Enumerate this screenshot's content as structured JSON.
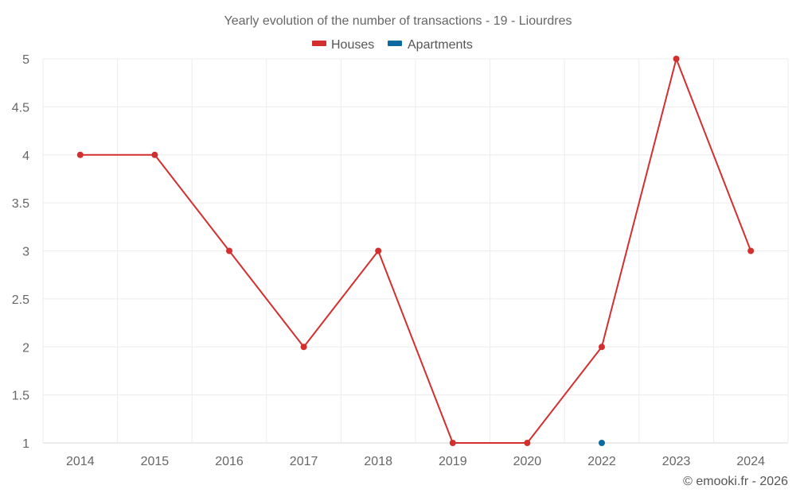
{
  "chart_data": {
    "type": "line",
    "title": "Yearly evolution of the number of transactions - 19 - Liourdres",
    "categories": [
      "2014",
      "2015",
      "2016",
      "2017",
      "2018",
      "2019",
      "2020",
      "2022",
      "2023",
      "2024"
    ],
    "series": [
      {
        "name": "Houses",
        "color": "#d32f2f",
        "values": [
          4,
          4,
          3,
          2,
          3,
          1,
          1,
          2,
          5,
          3
        ]
      },
      {
        "name": "Apartments",
        "color": "#0b6aa2",
        "values": [
          null,
          null,
          null,
          null,
          null,
          null,
          null,
          1,
          null,
          null
        ]
      }
    ],
    "ylim": [
      1,
      5
    ],
    "yticks": [
      "1",
      "1.5",
      "2",
      "2.5",
      "3",
      "3.5",
      "4",
      "4.5",
      "5"
    ],
    "xlabel": "",
    "ylabel": "",
    "grid": true,
    "legend_position": "top-center"
  },
  "watermark": "© emooki.fr - 2026"
}
